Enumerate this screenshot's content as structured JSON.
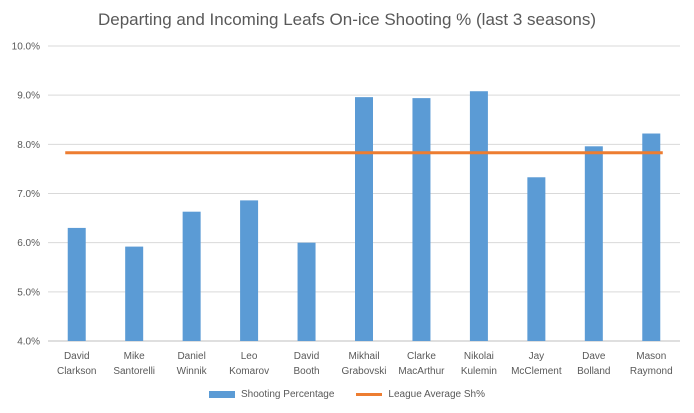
{
  "chart_data": {
    "type": "bar",
    "title": "Departing and Incoming Leafs On-ice Shooting % (last 3 seasons)",
    "xlabel": "",
    "ylabel": "",
    "categories": [
      [
        "David",
        "Clarkson"
      ],
      [
        "Mike",
        "Santorelli"
      ],
      [
        "Daniel",
        "Winnik"
      ],
      [
        "Leo",
        "Komarov"
      ],
      [
        "David",
        "Booth"
      ],
      [
        "Mikhail",
        "Grabovski"
      ],
      [
        "Clarke",
        "MacArthur"
      ],
      [
        "Nikolai",
        "Kulemin"
      ],
      [
        "Jay",
        "McClement"
      ],
      [
        "Dave",
        "Bolland"
      ],
      [
        "Mason",
        "Raymond"
      ]
    ],
    "series": [
      {
        "name": "Shooting Percentage",
        "type": "bar",
        "color": "#5b9bd5",
        "values": [
          6.3,
          5.92,
          6.63,
          6.86,
          6.0,
          8.96,
          8.94,
          9.08,
          7.33,
          7.96,
          8.22
        ]
      },
      {
        "name": "League Average Sh%",
        "type": "line",
        "color": "#ed7d31",
        "values": [
          7.83,
          7.83,
          7.83,
          7.83,
          7.83,
          7.83,
          7.83,
          7.83,
          7.83,
          7.83,
          7.83
        ]
      }
    ],
    "ylim": [
      4.0,
      10.0
    ],
    "yticks": [
      "4.0%",
      "5.0%",
      "6.0%",
      "7.0%",
      "8.0%",
      "9.0%",
      "10.0%"
    ],
    "grid": true,
    "legend_position": "bottom"
  }
}
